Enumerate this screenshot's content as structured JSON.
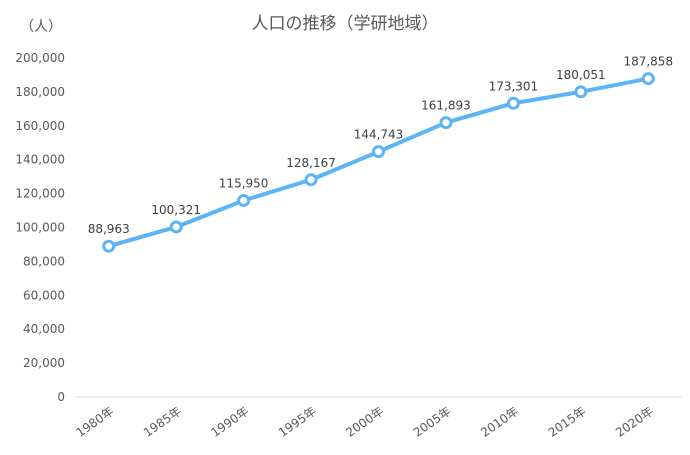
{
  "chart_data": {
    "type": "line",
    "title": "人口の推移（学研地域）",
    "ylabel": "（人）",
    "xlabel": "",
    "categories": [
      "1980年",
      "1985年",
      "1990年",
      "1995年",
      "2000年",
      "2005年",
      "2010年",
      "2015年",
      "2020年"
    ],
    "series": [
      {
        "values": [
          88963,
          100321,
          115950,
          128167,
          144743,
          161893,
          173301,
          180051,
          187858
        ],
        "data_labels": [
          "88,963",
          "100,321",
          "115,950",
          "128,167",
          "144,743",
          "161,893",
          "173,301",
          "180,051",
          "187,858"
        ],
        "color": "#5cb3f5"
      }
    ],
    "ylim": [
      0,
      200000
    ],
    "y_ticks": [
      0,
      20000,
      40000,
      60000,
      80000,
      100000,
      120000,
      140000,
      160000,
      180000,
      200000
    ],
    "y_tick_labels": [
      "0",
      "20,000",
      "40,000",
      "60,000",
      "80,000",
      "100,000",
      "120,000",
      "140,000",
      "160,000",
      "180,000",
      "200,000"
    ],
    "grid": false,
    "legend": "none"
  }
}
